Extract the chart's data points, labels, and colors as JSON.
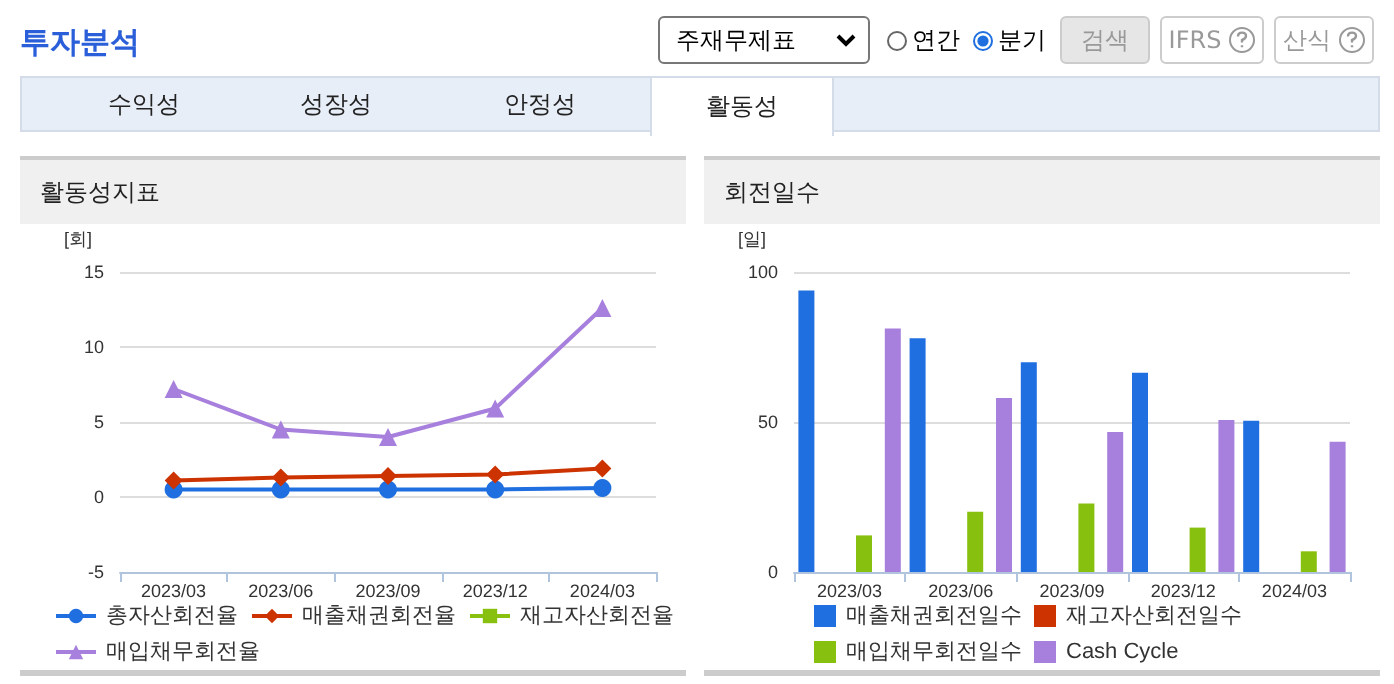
{
  "chart_data": [
    {
      "type": "line",
      "title": "활동성지표",
      "ylabel": "[회]",
      "annotations": [
        "투자분석",
        "주재무제표",
        "연간",
        "분기",
        "검색",
        "IFRS",
        "산식",
        "수익성",
        "성장성",
        "안정성",
        "활동성"
      ],
      "categories": [
        "2023/03",
        "2023/06",
        "2023/09",
        "2023/12",
        "2024/03"
      ],
      "series": [
        {
          "name": "총자산회전율",
          "color": "#1f6fe0",
          "marker": "circle",
          "values": [
            0.5,
            0.5,
            0.5,
            0.5,
            0.6
          ]
        },
        {
          "name": "매출채권회전율",
          "color": "#cc3300",
          "marker": "diamond",
          "values": [
            1.1,
            1.3,
            1.4,
            1.5,
            1.9
          ]
        },
        {
          "name": "재고자산회전율",
          "color": "#88c010",
          "marker": "square",
          "values": [
            null,
            null,
            null,
            null,
            null
          ]
        },
        {
          "name": "매입채무회전율",
          "color": "#a77fdc",
          "marker": "triangle",
          "values": [
            7.2,
            4.5,
            4.0,
            5.9,
            12.6
          ]
        }
      ],
      "ylim": [
        -5,
        15
      ],
      "yticks": [
        -5,
        0,
        5,
        10,
        15
      ],
      "grid": "y",
      "legend": "bottom"
    },
    {
      "type": "bar",
      "title": "회전일수",
      "ylabel": "[일]",
      "categories": [
        "2023/03",
        "2023/06",
        "2023/09",
        "2023/12",
        "2024/03"
      ],
      "series": [
        {
          "name": "매출채권회전일수",
          "color": "#1f6fe0",
          "values": [
            93.8,
            77.9,
            69.9,
            66.4,
            50.4
          ]
        },
        {
          "name": "재고자산회전일수",
          "color": "#cc3300",
          "values": [
            null,
            null,
            null,
            null,
            null
          ]
        },
        {
          "name": "매입채무회전일수",
          "color": "#88c010",
          "values": [
            12.2,
            20.1,
            22.8,
            14.8,
            6.9
          ]
        },
        {
          "name": "Cash Cycle",
          "color": "#a77fdc",
          "values": [
            81.2,
            58,
            46.7,
            50.7,
            43.4
          ]
        }
      ],
      "ylim": [
        0,
        100
      ],
      "yticks": [
        0,
        50,
        100
      ],
      "grid": "y",
      "legend": "bottom"
    }
  ]
}
